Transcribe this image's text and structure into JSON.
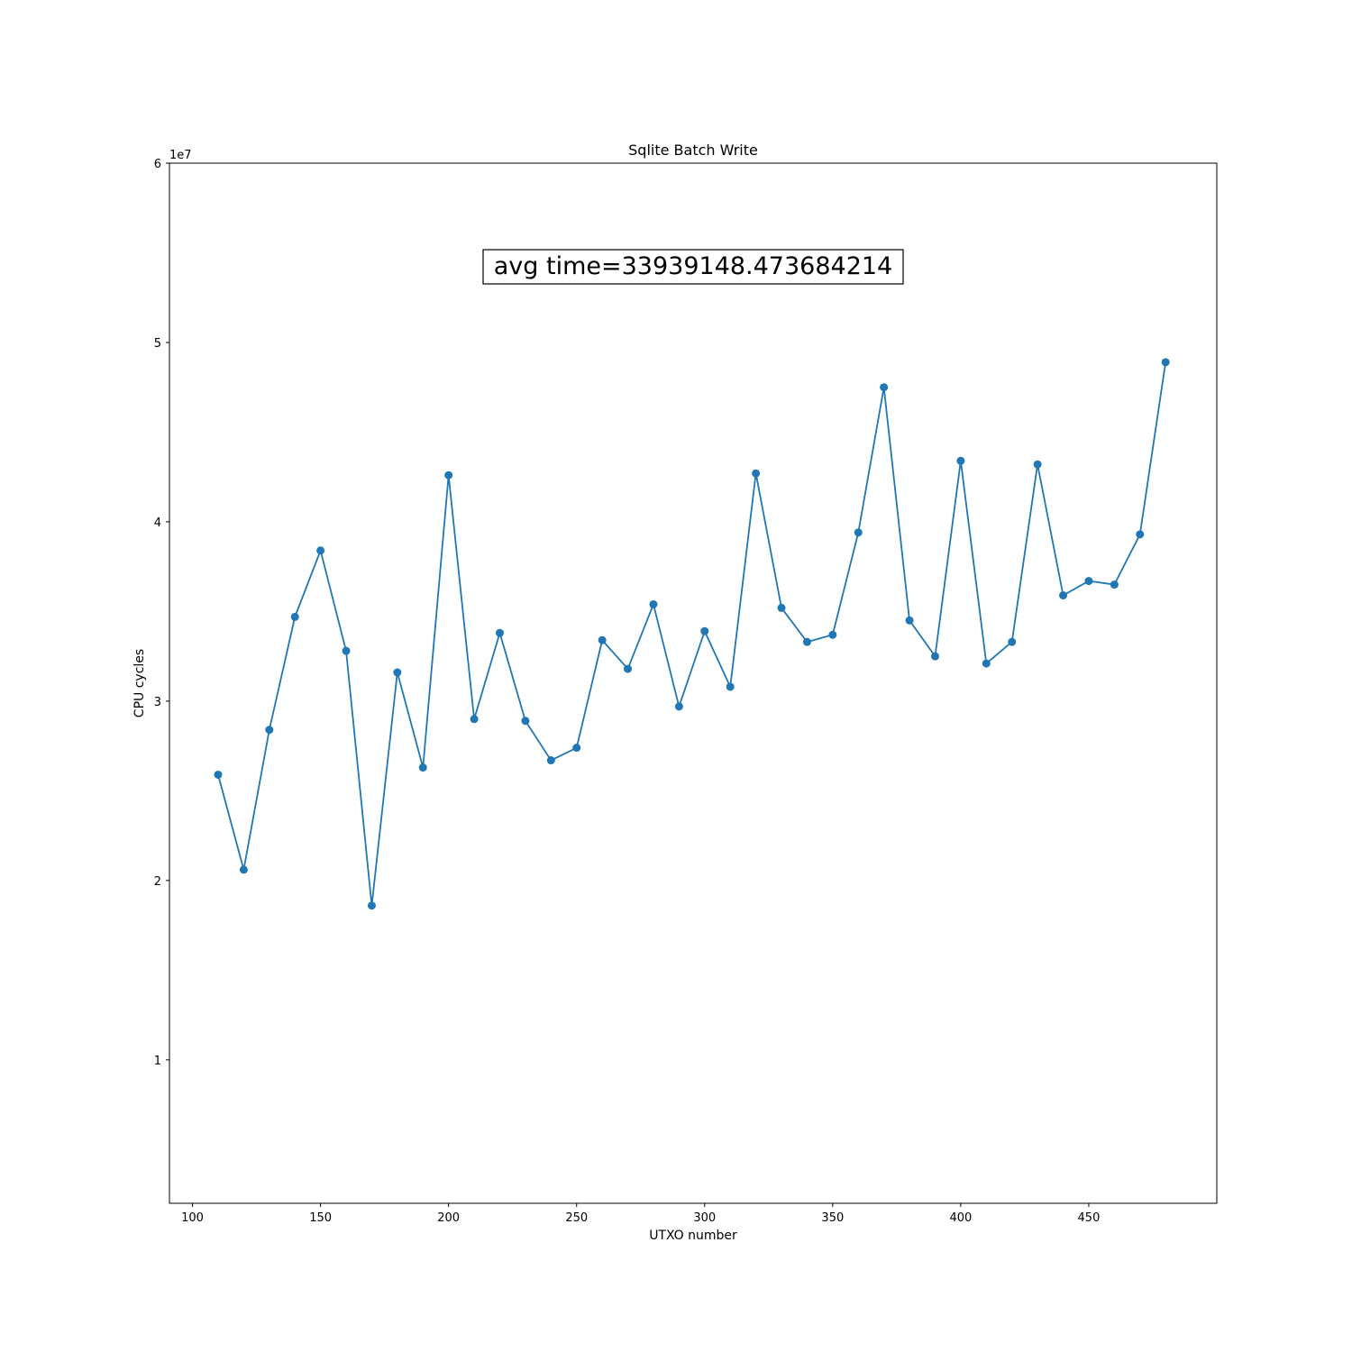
{
  "chart_data": {
    "type": "line",
    "title": "Sqlite Batch Write",
    "xlabel": "UTXO number",
    "ylabel": "CPU cycles",
    "y_offset_label": "1e7",
    "xlim": [
      91,
      500
    ],
    "ylim": [
      2000000,
      60000000
    ],
    "x_ticks": [
      100,
      150,
      200,
      250,
      300,
      350,
      400,
      450
    ],
    "x_tick_labels": [
      "100",
      "150",
      "200",
      "250",
      "300",
      "350",
      "400",
      "450"
    ],
    "y_ticks": [
      10000000,
      20000000,
      30000000,
      40000000,
      50000000,
      60000000
    ],
    "y_tick_labels": [
      "1",
      "2",
      "3",
      "4",
      "5",
      "6"
    ],
    "grid": false,
    "series": [
      {
        "color": "#1f77b4",
        "marker": "circle",
        "x": [
          110,
          120,
          130,
          140,
          150,
          160,
          170,
          180,
          190,
          200,
          210,
          220,
          230,
          240,
          250,
          260,
          270,
          280,
          290,
          300,
          310,
          320,
          330,
          340,
          350,
          360,
          370,
          380,
          390,
          400,
          410,
          420,
          430,
          440,
          450,
          460,
          470,
          480
        ],
        "y": [
          25900000,
          20600000,
          28400000,
          34700000,
          38400000,
          32800000,
          18600000,
          31600000,
          26300000,
          42600000,
          29000000,
          33800000,
          28900000,
          26700000,
          27400000,
          33400000,
          31800000,
          35400000,
          29700000,
          33900000,
          30800000,
          42700000,
          35200000,
          33300000,
          33700000,
          39400000,
          47500000,
          34500000,
          32500000,
          43400000,
          32100000,
          33300000,
          43200000,
          35900000,
          36700000,
          36500000,
          39300000,
          48900000
        ]
      }
    ],
    "annotation": "avg time=33939148.473684214"
  }
}
